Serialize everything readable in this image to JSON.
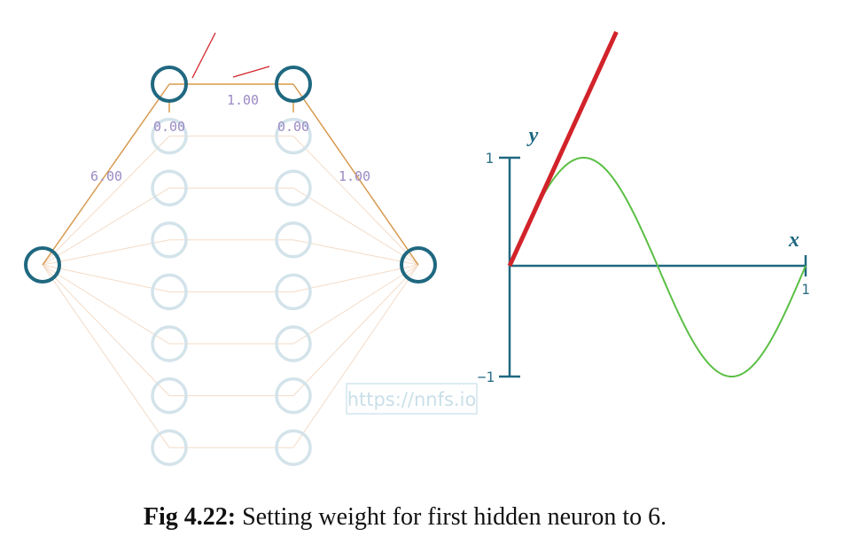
{
  "network": {
    "weight_input_to_first_hidden": "6.00",
    "bias_first_hidden_layer1": "0.00",
    "weight_between_hidden": "1.00",
    "bias_first_hidden_layer2": "0.00",
    "weight_to_output": "1.00",
    "hidden_layer_neurons": 8,
    "active_path": "first neuron"
  },
  "plot": {
    "y_label": "y",
    "x_label": "x",
    "y_tick_top": "1",
    "y_tick_bottom": "−1",
    "x_tick_right": "1"
  },
  "chart_data": {
    "type": "line",
    "xlim": [
      0,
      1
    ],
    "ylim": [
      -1,
      1
    ],
    "grid": false,
    "series": [
      {
        "name": "",
        "color": "#5bbf45",
        "x": [
          0,
          0.1,
          0.2,
          0.25,
          0.3,
          0.4,
          0.5,
          0.6,
          0.7,
          0.75,
          0.8,
          0.9,
          1.0
        ],
        "y": [
          0,
          0.588,
          0.951,
          1.0,
          0.951,
          0.588,
          0,
          -0.588,
          -0.951,
          -1.0,
          -0.951,
          -0.588,
          0
        ]
      },
      {
        "name": "",
        "color": "#d2232a",
        "x": [
          0,
          0.18
        ],
        "y": [
          0,
          1.08
        ],
        "clipped_at_top": true
      }
    ]
  },
  "watermark": "https://nnfs.io",
  "caption": {
    "label": "Fig 4.22:",
    "text": " Setting weight for first hidden neuron to 6."
  },
  "colors": {
    "active_neuron": "#1f6880",
    "inactive_neuron": "#d3e3ea",
    "active_edge": "#d79a4f",
    "inactive_edge": "#f3dbc7",
    "red_marker": "#d2232a"
  }
}
